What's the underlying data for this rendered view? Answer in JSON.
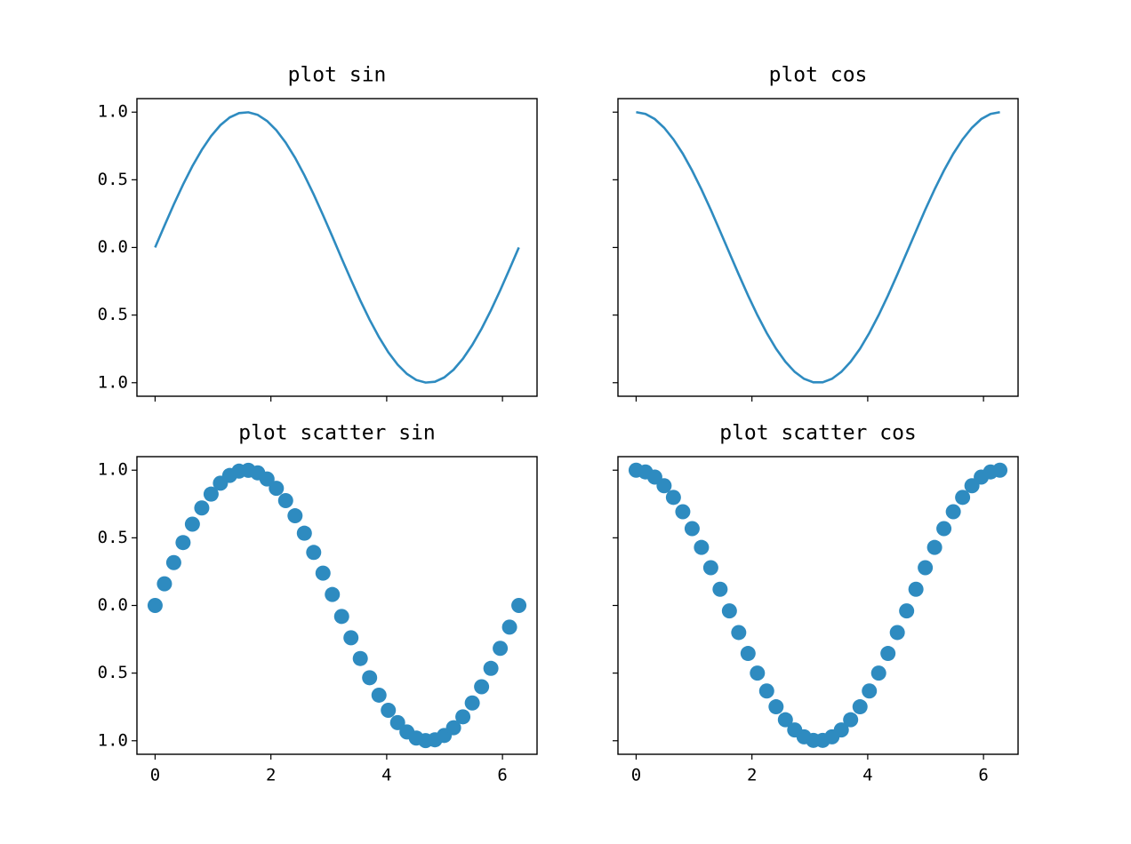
{
  "chart_data": [
    {
      "type": "line",
      "title": "plot sin",
      "color": "#2e8bc0",
      "x": [
        0,
        0.161,
        0.322,
        0.483,
        0.644,
        0.806,
        0.967,
        1.128,
        1.289,
        1.45,
        1.611,
        1.772,
        1.933,
        2.094,
        2.255,
        2.417,
        2.578,
        2.739,
        2.9,
        3.061,
        3.222,
        3.383,
        3.544,
        3.705,
        3.867,
        4.028,
        4.189,
        4.35,
        4.511,
        4.672,
        4.833,
        4.994,
        5.155,
        5.316,
        5.478,
        5.639,
        5.8,
        5.961,
        6.122,
        6.283
      ],
      "values": [
        0,
        0.16,
        0.317,
        0.465,
        0.601,
        0.721,
        0.823,
        0.904,
        0.961,
        0.993,
        0.999,
        0.98,
        0.935,
        0.866,
        0.775,
        0.663,
        0.534,
        0.392,
        0.239,
        0.081,
        -0.081,
        -0.239,
        -0.392,
        -0.534,
        -0.663,
        -0.775,
        -0.866,
        -0.935,
        -0.98,
        -0.999,
        -0.993,
        -0.961,
        -0.904,
        -0.823,
        -0.721,
        -0.601,
        -0.465,
        -0.317,
        -0.16,
        0
      ],
      "xlim": [
        -0.314,
        6.597
      ],
      "ylim": [
        -1.1,
        1.1
      ],
      "xticks": [
        0,
        2,
        4,
        6
      ],
      "yticks": [
        {
          "value": -1,
          "label": "1.0"
        },
        {
          "value": -0.5,
          "label": "0.5"
        },
        {
          "value": 0,
          "label": "0.0"
        },
        {
          "value": 0.5,
          "label": "0.5"
        },
        {
          "value": 1,
          "label": "1.0"
        }
      ]
    },
    {
      "type": "line",
      "title": "plot cos",
      "color": "#2e8bc0",
      "x": [
        0,
        0.161,
        0.322,
        0.483,
        0.644,
        0.806,
        0.967,
        1.128,
        1.289,
        1.45,
        1.611,
        1.772,
        1.933,
        2.094,
        2.255,
        2.417,
        2.578,
        2.739,
        2.9,
        3.061,
        3.222,
        3.383,
        3.544,
        3.705,
        3.867,
        4.028,
        4.189,
        4.35,
        4.511,
        4.672,
        4.833,
        4.994,
        5.155,
        5.316,
        5.478,
        5.639,
        5.8,
        5.961,
        6.122,
        6.283
      ],
      "values": [
        1,
        0.987,
        0.949,
        0.885,
        0.799,
        0.693,
        0.568,
        0.429,
        0.279,
        0.12,
        -0.04,
        -0.2,
        -0.355,
        -0.5,
        -0.632,
        -0.749,
        -0.845,
        -0.92,
        -0.971,
        -0.997,
        -0.997,
        -0.971,
        -0.92,
        -0.845,
        -0.749,
        -0.632,
        -0.5,
        -0.355,
        -0.2,
        -0.04,
        0.12,
        0.279,
        0.429,
        0.568,
        0.693,
        0.799,
        0.885,
        0.949,
        0.987,
        1
      ],
      "xlim": [
        -0.314,
        6.597
      ],
      "ylim": [
        -1.1,
        1.1
      ],
      "xticks": [
        0,
        2,
        4,
        6
      ],
      "yticks": [
        -1,
        -0.5,
        0,
        0.5,
        1
      ]
    },
    {
      "type": "scatter",
      "title": "plot scatter sin",
      "color": "#2e8bc0",
      "x": [
        0,
        0.161,
        0.322,
        0.483,
        0.644,
        0.806,
        0.967,
        1.128,
        1.289,
        1.45,
        1.611,
        1.772,
        1.933,
        2.094,
        2.255,
        2.417,
        2.578,
        2.739,
        2.9,
        3.061,
        3.222,
        3.383,
        3.544,
        3.705,
        3.867,
        4.028,
        4.189,
        4.35,
        4.511,
        4.672,
        4.833,
        4.994,
        5.155,
        5.316,
        5.478,
        5.639,
        5.8,
        5.961,
        6.122,
        6.283
      ],
      "values": [
        0,
        0.16,
        0.317,
        0.465,
        0.601,
        0.721,
        0.823,
        0.904,
        0.961,
        0.993,
        0.999,
        0.98,
        0.935,
        0.866,
        0.775,
        0.663,
        0.534,
        0.392,
        0.239,
        0.081,
        -0.081,
        -0.239,
        -0.392,
        -0.534,
        -0.663,
        -0.775,
        -0.866,
        -0.935,
        -0.98,
        -0.999,
        -0.993,
        -0.961,
        -0.904,
        -0.823,
        -0.721,
        -0.601,
        -0.465,
        -0.317,
        -0.16,
        0
      ],
      "xlim": [
        -0.314,
        6.597
      ],
      "ylim": [
        -1.1,
        1.1
      ],
      "xticks": [
        0,
        2,
        4,
        6
      ],
      "yticks": [
        {
          "value": -1,
          "label": "1.0"
        },
        {
          "value": -0.5,
          "label": "0.5"
        },
        {
          "value": 0,
          "label": "0.0"
        },
        {
          "value": 0.5,
          "label": "0.5"
        },
        {
          "value": 1,
          "label": "1.0"
        }
      ]
    },
    {
      "type": "scatter",
      "title": "plot scatter cos",
      "color": "#2e8bc0",
      "x": [
        0,
        0.161,
        0.322,
        0.483,
        0.644,
        0.806,
        0.967,
        1.128,
        1.289,
        1.45,
        1.611,
        1.772,
        1.933,
        2.094,
        2.255,
        2.417,
        2.578,
        2.739,
        2.9,
        3.061,
        3.222,
        3.383,
        3.544,
        3.705,
        3.867,
        4.028,
        4.189,
        4.35,
        4.511,
        4.672,
        4.833,
        4.994,
        5.155,
        5.316,
        5.478,
        5.639,
        5.8,
        5.961,
        6.122,
        6.283
      ],
      "values": [
        1,
        0.987,
        0.949,
        0.885,
        0.799,
        0.693,
        0.568,
        0.429,
        0.279,
        0.12,
        -0.04,
        -0.2,
        -0.355,
        -0.5,
        -0.632,
        -0.749,
        -0.845,
        -0.92,
        -0.971,
        -0.997,
        -0.997,
        -0.971,
        -0.92,
        -0.845,
        -0.749,
        -0.632,
        -0.5,
        -0.355,
        -0.2,
        -0.04,
        0.12,
        0.279,
        0.429,
        0.568,
        0.693,
        0.799,
        0.885,
        0.949,
        0.987,
        1
      ],
      "xlim": [
        -0.314,
        6.597
      ],
      "ylim": [
        -1.1,
        1.1
      ],
      "xticks": [
        0,
        2,
        4,
        6
      ],
      "yticks": [
        -1,
        -0.5,
        0,
        0.5,
        1
      ]
    }
  ]
}
